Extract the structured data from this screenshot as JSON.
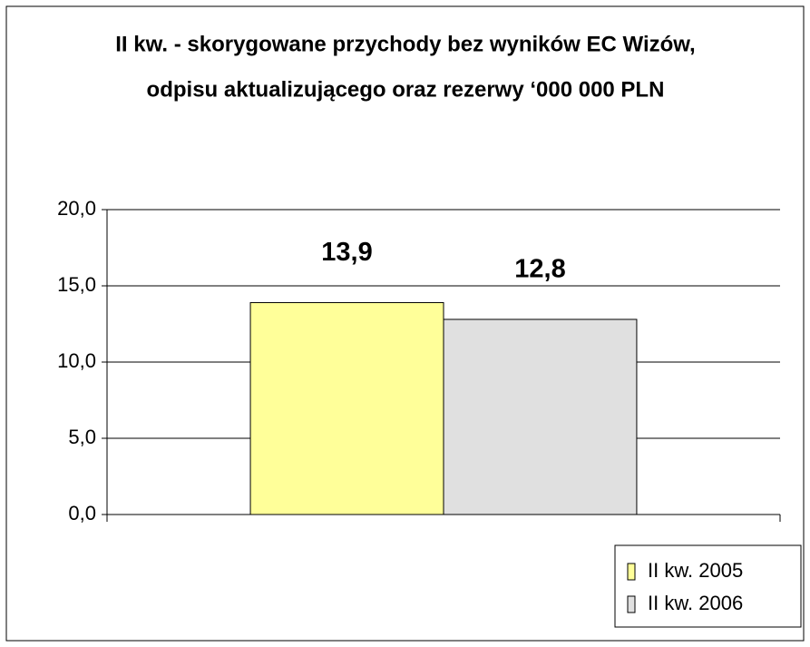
{
  "chart_data": {
    "type": "bar",
    "title": [
      "II kw. -  skorygowane przychody bez wyników EC Wizów,",
      "odpisu aktualizującego oraz rezerwy ‘000 000 PLN"
    ],
    "categories": [
      null
    ],
    "series": [
      {
        "name": "II kw. 2005",
        "color": "#ffff99",
        "values": [
          13.9
        ],
        "value_labels": [
          "13,9"
        ]
      },
      {
        "name": "II kw. 2006",
        "color": "#e0e0e0",
        "values": [
          12.8
        ],
        "value_labels": [
          "12,8"
        ]
      }
    ],
    "ylim": [
      0,
      20
    ],
    "yticks": [
      {
        "value": 0,
        "label": "0,0"
      },
      {
        "value": 5,
        "label": "5,0"
      },
      {
        "value": 10,
        "label": "10,0"
      },
      {
        "value": 15,
        "label": "15,0"
      },
      {
        "value": 20,
        "label": "20,0"
      }
    ],
    "grid": true,
    "legend": "bottom-right"
  }
}
